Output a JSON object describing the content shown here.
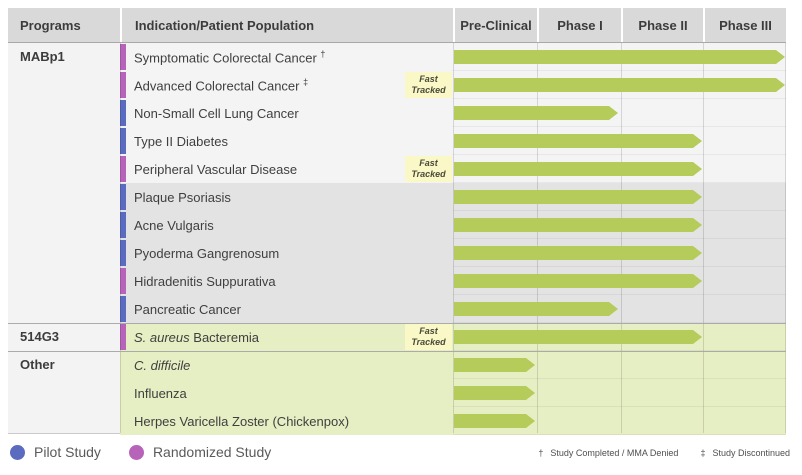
{
  "legend": [
    {
      "key": "pilot",
      "label": "Pilot Study",
      "color": "#5b6bc0"
    },
    {
      "key": "randomized",
      "label": "Randomized Study",
      "color": "#b763b9"
    }
  ],
  "footnotes": [
    {
      "symbol": "†",
      "text": "Study Completed / MMA Denied"
    },
    {
      "symbol": "‡",
      "text": "Study Discontinued"
    }
  ],
  "fast_tracked_label": "Fast Tracked",
  "colors": {
    "bar_green": "#b5cb5a",
    "pilot_blue": "#5b6bc0",
    "randomized_magenta": "#b763b9",
    "green_row_bg": "#e6eec3",
    "dark_row_bg": "#e3e3e3",
    "light_row_bg": "#f4f4f4",
    "fast_badge_bg": "#fbf8c7",
    "header_bg": "#d9d9d9"
  },
  "chart_data": {
    "type": "table",
    "columns": [
      "Programs",
      "Indication/Patient Population",
      "Pre-Clinical",
      "Phase I",
      "Phase II",
      "Phase III"
    ],
    "stages": [
      "Pre-Clinical",
      "Phase I",
      "Phase II",
      "Phase III"
    ],
    "programs": [
      {
        "name": "MABp1",
        "rows": [
          {
            "indication": "Symptomatic Colorectal Cancer",
            "suffix": "†",
            "study": "Randomized Study",
            "stage_reached": "Phase III",
            "fast_tracked": false,
            "shade": "light"
          },
          {
            "indication": "Advanced Colorectal Cancer",
            "suffix": "‡",
            "study": "Randomized Study",
            "stage_reached": "Phase III",
            "fast_tracked": true,
            "shade": "light"
          },
          {
            "indication": "Non-Small Cell Lung Cancer",
            "study": "Pilot Study",
            "stage_reached": "Phase I",
            "fast_tracked": false,
            "shade": "light"
          },
          {
            "indication": "Type II Diabetes",
            "study": "Pilot Study",
            "stage_reached": "Phase II",
            "fast_tracked": false,
            "shade": "light"
          },
          {
            "indication": "Peripheral Vascular Disease",
            "study": "Randomized Study",
            "stage_reached": "Phase II",
            "fast_tracked": true,
            "shade": "light"
          },
          {
            "indication": "Plaque Psoriasis",
            "study": "Pilot Study",
            "stage_reached": "Phase II",
            "fast_tracked": false,
            "shade": "dark"
          },
          {
            "indication": "Acne Vulgaris",
            "study": "Pilot Study",
            "stage_reached": "Phase II",
            "fast_tracked": false,
            "shade": "dark"
          },
          {
            "indication": "Pyoderma Gangrenosum",
            "study": "Pilot Study",
            "stage_reached": "Phase II",
            "fast_tracked": false,
            "shade": "dark"
          },
          {
            "indication": "Hidradenitis Suppurativa",
            "study": "Randomized Study",
            "stage_reached": "Phase II",
            "fast_tracked": false,
            "shade": "dark"
          },
          {
            "indication": "Pancreatic Cancer",
            "study": "Pilot Study",
            "stage_reached": "Phase I",
            "fast_tracked": false,
            "shade": "dark"
          }
        ]
      },
      {
        "name": "514G3",
        "rows": [
          {
            "indication_italic": "S. aureus",
            "indication": " Bacteremia",
            "study": "Randomized Study",
            "stage_reached": "Phase II",
            "fast_tracked": true,
            "shade": "green"
          }
        ]
      },
      {
        "name": "Other",
        "rows": [
          {
            "indication_italic": "C. difficile",
            "indication": "",
            "study": null,
            "stage_reached": "Pre-Clinical",
            "fast_tracked": false,
            "shade": "green"
          },
          {
            "indication": "Influenza",
            "study": null,
            "stage_reached": "Pre-Clinical",
            "fast_tracked": false,
            "shade": "green"
          },
          {
            "indication": "Herpes Varicella Zoster (Chickenpox)",
            "study": null,
            "stage_reached": "Pre-Clinical",
            "fast_tracked": false,
            "shade": "green"
          }
        ]
      }
    ]
  }
}
